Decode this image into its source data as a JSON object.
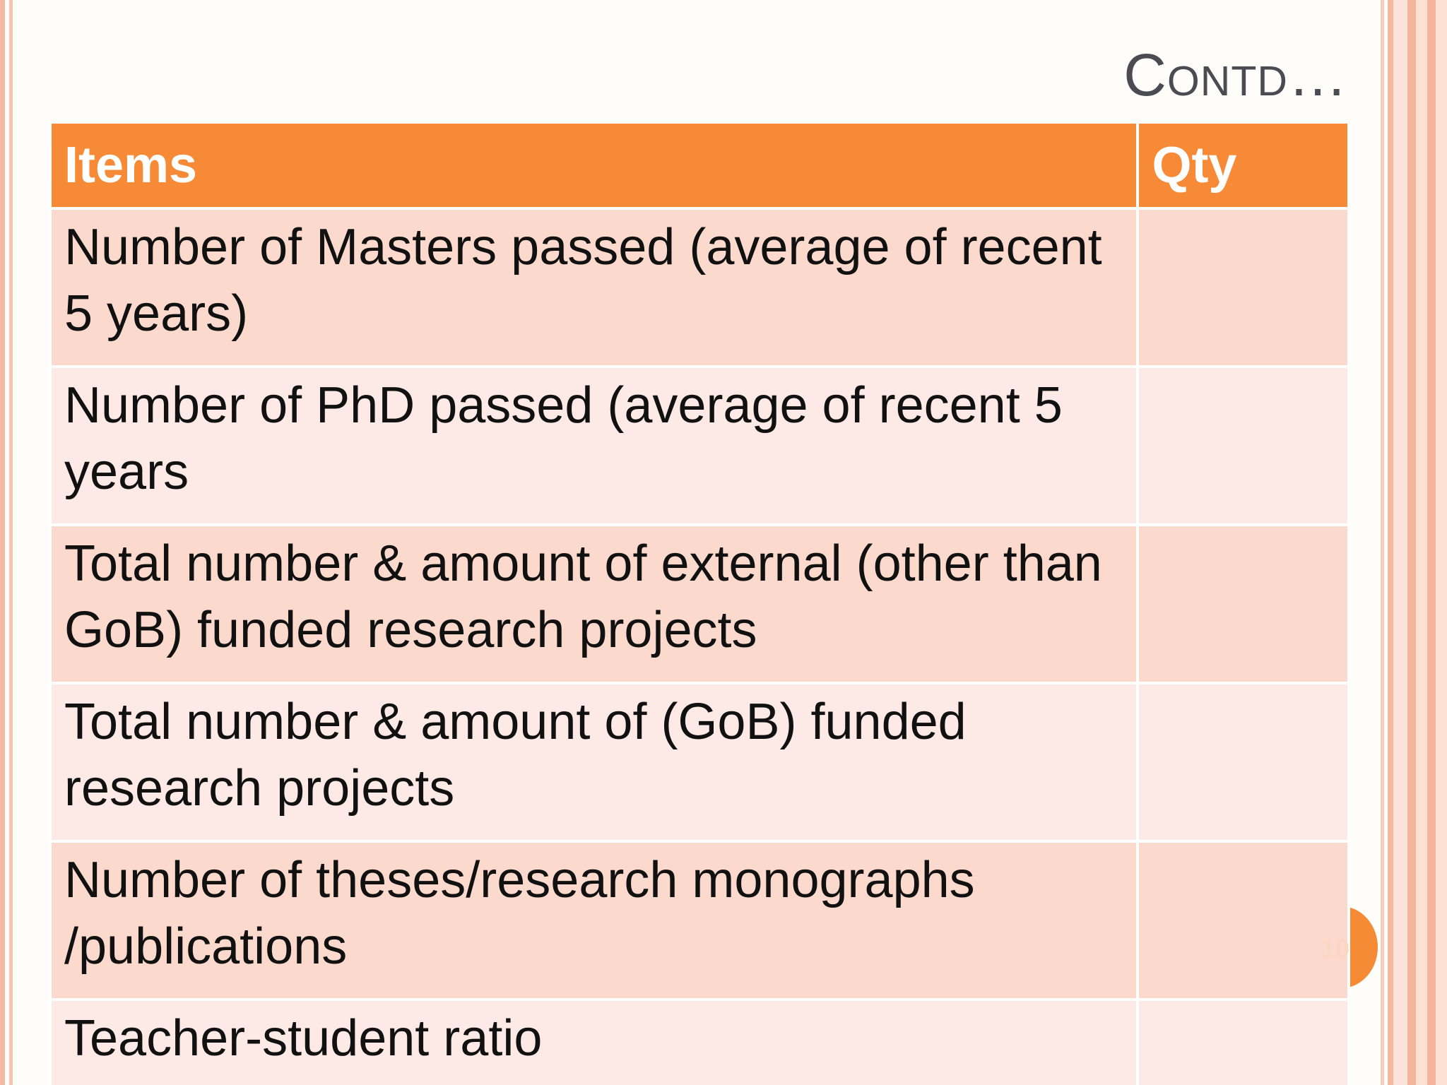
{
  "slide": {
    "title": "Contd…",
    "page_number": "10"
  },
  "table": {
    "headers": [
      "Items",
      "Qty"
    ],
    "rows": [
      {
        "item": "Number of Masters passed (average of recent 5 years)",
        "qty": ""
      },
      {
        "item": "Number of PhD passed (average of recent 5 years",
        "qty": ""
      },
      {
        "item": "Total number & amount of external  (other than GoB) funded research projects",
        "qty": ""
      },
      {
        "item": "Total number & amount of (GoB) funded research projects",
        "qty": ""
      },
      {
        "item": "Number  of theses/research monographs /publications",
        "qty": ""
      },
      {
        "item": "Teacher-student ratio",
        "qty": ""
      }
    ]
  },
  "colors": {
    "header_fill": "#f78a37",
    "row_fill_dark": "#fbd9cd",
    "row_fill_light": "#fde9e5",
    "accent_border": "#f5b8a0",
    "badge": "#f58b35"
  }
}
